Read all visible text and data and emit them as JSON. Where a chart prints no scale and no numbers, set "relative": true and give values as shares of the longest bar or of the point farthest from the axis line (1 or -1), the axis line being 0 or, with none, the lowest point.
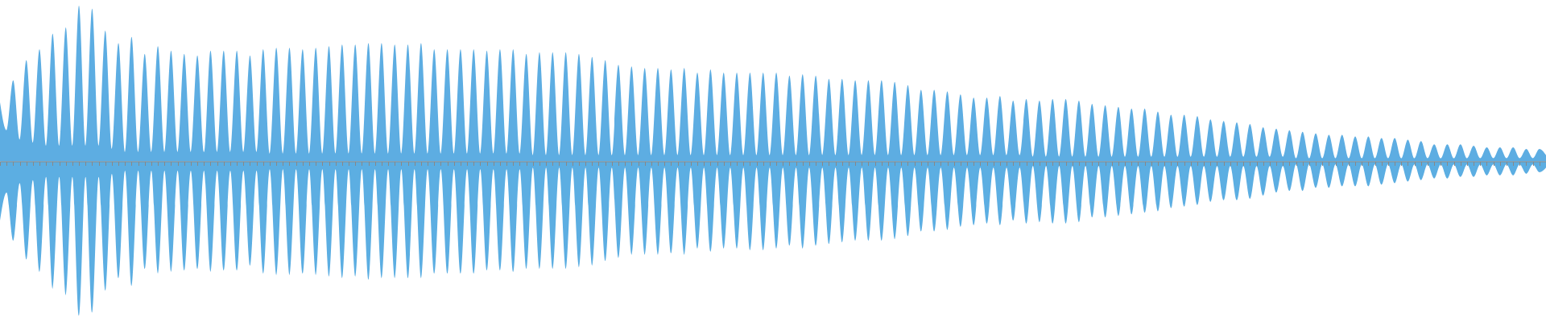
{
  "chart_data": {
    "type": "area",
    "relative": true,
    "categories": [
      null,
      null,
      null,
      null,
      null,
      null,
      null,
      null,
      null,
      null,
      null,
      null,
      null,
      null,
      null,
      null,
      null,
      null,
      null,
      null,
      null,
      null,
      null,
      null,
      null,
      null,
      null,
      null,
      null,
      null,
      null,
      null,
      null,
      null,
      null,
      null,
      null,
      null,
      null,
      null,
      null,
      null,
      null,
      null,
      null,
      null,
      null,
      null,
      null,
      null,
      null,
      null,
      null,
      null,
      null,
      null,
      null,
      null,
      null,
      null,
      null,
      null,
      null,
      null,
      null,
      null,
      null,
      null,
      null,
      null,
      null,
      null,
      null,
      null,
      null,
      null,
      null,
      null,
      null,
      null,
      null,
      null,
      null,
      null,
      null,
      null,
      null,
      null,
      null,
      null,
      null,
      null,
      null,
      null,
      null,
      null,
      null,
      null,
      null,
      null,
      null,
      null,
      null,
      null,
      null,
      null,
      null,
      null,
      null,
      null,
      null,
      null,
      null,
      null,
      null,
      null,
      null,
      null,
      null,
      null,
      null,
      null,
      null,
      null,
      null,
      null,
      null,
      null,
      null,
      null,
      null,
      null,
      null,
      null,
      null,
      null,
      null,
      null,
      null,
      null,
      null,
      null,
      null,
      null,
      null,
      null,
      null,
      null,
      null,
      null,
      null,
      null,
      null,
      null,
      null,
      null,
      null,
      null,
      null,
      null,
      null,
      null,
      null,
      null,
      null,
      null,
      null,
      null,
      null,
      null,
      null,
      null,
      null,
      null,
      null,
      null,
      null,
      null,
      null,
      null,
      null,
      null,
      null,
      null,
      null,
      null,
      null,
      null,
      null,
      null,
      null,
      null,
      null,
      null,
      null,
      null,
      null,
      null,
      null,
      null,
      null,
      null,
      null,
      null,
      null,
      null,
      null,
      null,
      null,
      null,
      null,
      null,
      null,
      null,
      null,
      null,
      null,
      null,
      null,
      null,
      null,
      null,
      null,
      null,
      null,
      null,
      null,
      null,
      null,
      null,
      null,
      null,
      null,
      null,
      null,
      null
    ],
    "series": [
      {
        "color": "#5dade2",
        "values": [
          0.38,
          0.2,
          0.52,
          0.14,
          0.65,
          0.12,
          0.72,
          0.1,
          0.82,
          0.1,
          0.86,
          0.1,
          1.0,
          0.1,
          0.98,
          0.1,
          0.84,
          0.08,
          0.76,
          0.06,
          0.8,
          0.06,
          0.69,
          0.06,
          0.74,
          0.06,
          0.71,
          0.06,
          0.69,
          0.06,
          0.68,
          0.06,
          0.71,
          0.06,
          0.71,
          0.06,
          0.71,
          0.06,
          0.68,
          0.06,
          0.72,
          0.05,
          0.73,
          0.05,
          0.73,
          0.05,
          0.72,
          0.05,
          0.73,
          0.05,
          0.74,
          0.05,
          0.75,
          0.05,
          0.75,
          0.05,
          0.76,
          0.05,
          0.76,
          0.05,
          0.75,
          0.05,
          0.75,
          0.05,
          0.76,
          0.05,
          0.72,
          0.05,
          0.72,
          0.05,
          0.72,
          0.05,
          0.72,
          0.05,
          0.71,
          0.05,
          0.72,
          0.05,
          0.72,
          0.05,
          0.69,
          0.04,
          0.7,
          0.04,
          0.7,
          0.04,
          0.7,
          0.04,
          0.69,
          0.04,
          0.67,
          0.04,
          0.65,
          0.04,
          0.62,
          0.04,
          0.61,
          0.04,
          0.6,
          0.04,
          0.6,
          0.04,
          0.59,
          0.04,
          0.6,
          0.04,
          0.57,
          0.04,
          0.59,
          0.04,
          0.57,
          0.04,
          0.57,
          0.04,
          0.57,
          0.04,
          0.57,
          0.04,
          0.57,
          0.04,
          0.55,
          0.04,
          0.56,
          0.04,
          0.55,
          0.04,
          0.53,
          0.04,
          0.53,
          0.04,
          0.52,
          0.04,
          0.52,
          0.04,
          0.52,
          0.04,
          0.51,
          0.04,
          0.49,
          0.04,
          0.46,
          0.04,
          0.46,
          0.04,
          0.45,
          0.04,
          0.43,
          0.04,
          0.41,
          0.04,
          0.41,
          0.04,
          0.42,
          0.04,
          0.39,
          0.04,
          0.4,
          0.03,
          0.39,
          0.03,
          0.4,
          0.03,
          0.4,
          0.03,
          0.39,
          0.03,
          0.37,
          0.03,
          0.36,
          0.03,
          0.35,
          0.03,
          0.34,
          0.03,
          0.34,
          0.03,
          0.32,
          0.03,
          0.3,
          0.03,
          0.3,
          0.03,
          0.29,
          0.03,
          0.27,
          0.03,
          0.26,
          0.03,
          0.25,
          0.03,
          0.24,
          0.03,
          0.22,
          0.03,
          0.21,
          0.03,
          0.2,
          0.02,
          0.19,
          0.02,
          0.18,
          0.02,
          0.17,
          0.02,
          0.17,
          0.02,
          0.16,
          0.02,
          0.16,
          0.02,
          0.15,
          0.02,
          0.15,
          0.02,
          0.14,
          0.02,
          0.13,
          0.02,
          0.11,
          0.02,
          0.11,
          0.02,
          0.11,
          0.02,
          0.1,
          0.02,
          0.09,
          0.02,
          0.09,
          0.02,
          0.09,
          0.02,
          0.08,
          0.02,
          0.08,
          0.04
        ]
      },
      {
        "color": "#5caee2",
        "values": [
          -0.38,
          -0.2,
          -0.51,
          -0.14,
          -0.63,
          -0.12,
          -0.71,
          -0.1,
          -0.82,
          -0.1,
          -0.86,
          -0.1,
          -0.99,
          -0.1,
          -0.97,
          -0.1,
          -0.83,
          -0.08,
          -0.75,
          -0.06,
          -0.8,
          -0.06,
          -0.69,
          -0.06,
          -0.72,
          -0.06,
          -0.71,
          -0.06,
          -0.7,
          -0.06,
          -0.69,
          -0.06,
          -0.71,
          -0.06,
          -0.7,
          -0.06,
          -0.7,
          -0.06,
          -0.67,
          -0.06,
          -0.72,
          -0.05,
          -0.73,
          -0.05,
          -0.73,
          -0.05,
          -0.72,
          -0.05,
          -0.73,
          -0.05,
          -0.74,
          -0.05,
          -0.75,
          -0.05,
          -0.74,
          -0.05,
          -0.76,
          -0.05,
          -0.75,
          -0.05,
          -0.75,
          -0.05,
          -0.75,
          -0.05,
          -0.75,
          -0.05,
          -0.72,
          -0.05,
          -0.72,
          -0.05,
          -0.72,
          -0.05,
          -0.72,
          -0.05,
          -0.7,
          -0.05,
          -0.7,
          -0.05,
          -0.71,
          -0.05,
          -0.69,
          -0.04,
          -0.69,
          -0.04,
          -0.69,
          -0.04,
          -0.69,
          -0.04,
          -0.68,
          -0.04,
          -0.67,
          -0.04,
          -0.64,
          -0.04,
          -0.62,
          -0.04,
          -0.6,
          -0.04,
          -0.6,
          -0.04,
          -0.6,
          -0.04,
          -0.59,
          -0.04,
          -0.6,
          -0.04,
          -0.56,
          -0.04,
          -0.58,
          -0.04,
          -0.56,
          -0.04,
          -0.56,
          -0.04,
          -0.57,
          -0.04,
          -0.57,
          -0.04,
          -0.56,
          -0.04,
          -0.54,
          -0.04,
          -0.56,
          -0.04,
          -0.54,
          -0.04,
          -0.53,
          -0.04,
          -0.52,
          -0.04,
          -0.51,
          -0.04,
          -0.51,
          -0.04,
          -0.51,
          -0.04,
          -0.5,
          -0.04,
          -0.48,
          -0.04,
          -0.45,
          -0.04,
          -0.45,
          -0.04,
          -0.44,
          -0.04,
          -0.42,
          -0.04,
          -0.41,
          -0.04,
          -0.4,
          -0.04,
          -0.41,
          -0.04,
          -0.38,
          -0.04,
          -0.4,
          -0.03,
          -0.39,
          -0.03,
          -0.4,
          -0.03,
          -0.4,
          -0.03,
          -0.39,
          -0.03,
          -0.36,
          -0.03,
          -0.36,
          -0.03,
          -0.35,
          -0.03,
          -0.34,
          -0.03,
          -0.33,
          -0.03,
          -0.32,
          -0.03,
          -0.3,
          -0.03,
          -0.29,
          -0.03,
          -0.28,
          -0.03,
          -0.26,
          -0.03,
          -0.25,
          -0.03,
          -0.25,
          -0.03,
          -0.24,
          -0.03,
          -0.22,
          -0.03,
          -0.2,
          -0.03,
          -0.19,
          -0.02,
          -0.19,
          -0.02,
          -0.17,
          -0.02,
          -0.17,
          -0.02,
          -0.16,
          -0.02,
          -0.16,
          -0.02,
          -0.16,
          -0.02,
          -0.15,
          -0.02,
          -0.14,
          -0.02,
          -0.13,
          -0.02,
          -0.12,
          -0.02,
          -0.11,
          -0.02,
          -0.11,
          -0.02,
          -0.1,
          -0.02,
          -0.1,
          -0.02,
          -0.09,
          -0.02,
          -0.09,
          -0.02,
          -0.09,
          -0.02,
          -0.08,
          -0.02,
          -0.07,
          -0.04
        ]
      }
    ]
  }
}
